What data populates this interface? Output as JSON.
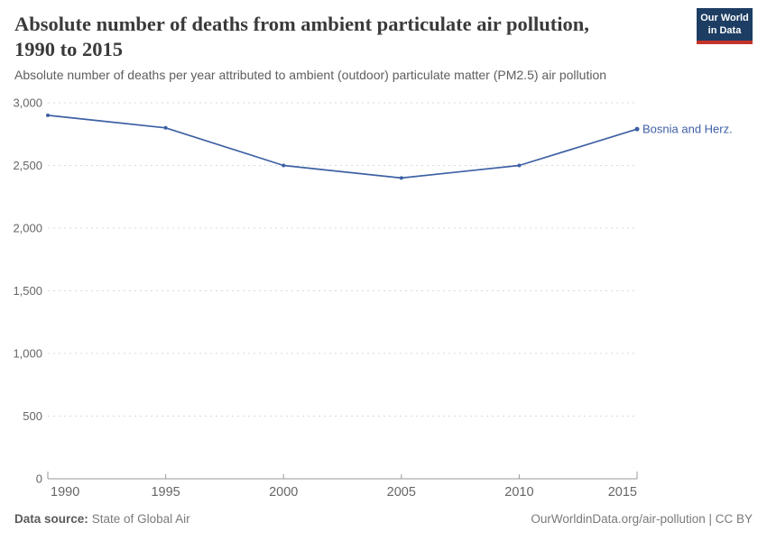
{
  "header": {
    "title_lines": [
      "Absolute number of deaths from ambient particulate air pollution,",
      "1990 to 2015"
    ],
    "subtitle": "Absolute number of deaths per year attributed to ambient (outdoor) particulate matter (PM2.5) air pollution",
    "logo": {
      "line1": "Our World",
      "line2": "in Data",
      "bg_color": "#1d3d63",
      "accent_color": "#c5332a"
    }
  },
  "chart_data": {
    "type": "line",
    "title": "Absolute number of deaths from ambient particulate air pollution, 1990 to 2015",
    "subtitle": "Absolute number of deaths per year attributed to ambient (outdoor) particulate matter (PM2.5) air pollution",
    "x": [
      1990,
      1995,
      2000,
      2005,
      2010,
      2015
    ],
    "x_tick_labels": [
      "1990",
      "1995",
      "2000",
      "2005",
      "2010",
      "2015"
    ],
    "y_ticks": [
      0,
      500,
      1000,
      1500,
      2000,
      2500,
      3000
    ],
    "y_tick_labels": [
      "0",
      "500",
      "1,000",
      "1,500",
      "2,000",
      "2,500",
      "3,000"
    ],
    "xlim": [
      1990,
      2015
    ],
    "ylim": [
      0,
      3000
    ],
    "xlabel": "",
    "ylabel": "",
    "grid": "horizontal-dashed",
    "legend_position": "end-of-line-label",
    "series": [
      {
        "name": "Bosnia and Herz.",
        "color": "#3e60a4",
        "values": [
          2900,
          2800,
          2500,
          2400,
          2500,
          2790
        ]
      }
    ],
    "colors": {
      "grid": "#d9d9d9",
      "axis": "#9a9a9a",
      "tick_label": "#666666"
    }
  },
  "footer": {
    "source_label": "Data source:",
    "source_value": "State of Global Air",
    "credit": "OurWorldinData.org/air-pollution | CC BY"
  }
}
